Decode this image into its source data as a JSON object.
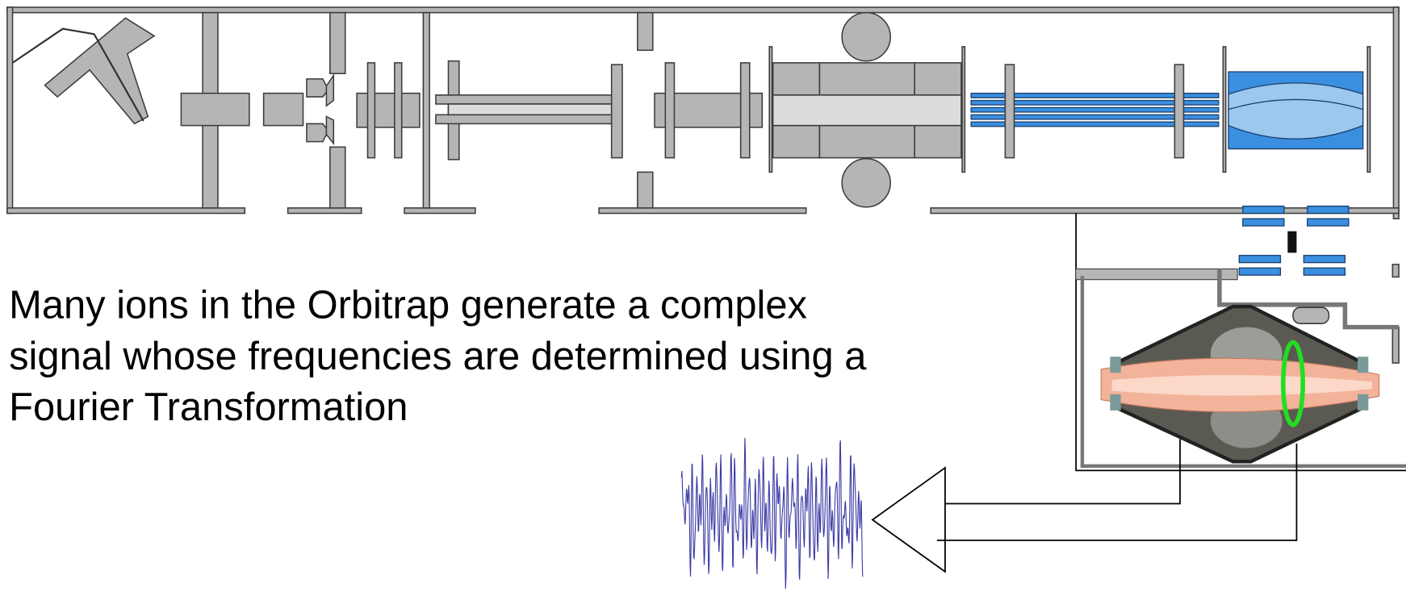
{
  "caption": {
    "lines": [
      "Many ions in the Orbitrap generate a complex",
      "signal whose frequencies are determined using a",
      "Fourier Transformation"
    ]
  }
}
